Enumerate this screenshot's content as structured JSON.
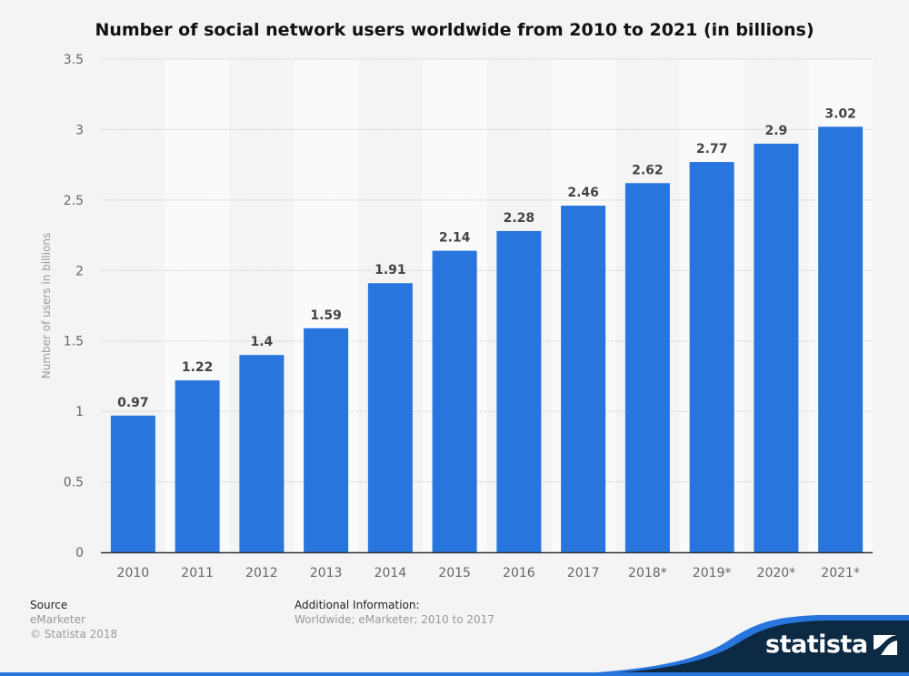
{
  "chart_data": {
    "type": "bar",
    "title": "Number of social network users worldwide from 2010 to 2021 (in billions)",
    "xlabel": "",
    "ylabel": "Number of users in billions",
    "categories": [
      "2010",
      "2011",
      "2012",
      "2013",
      "2014",
      "2015",
      "2016",
      "2017",
      "2018*",
      "2019*",
      "2020*",
      "2021*"
    ],
    "values": [
      0.97,
      1.22,
      1.4,
      1.59,
      1.91,
      2.14,
      2.28,
      2.46,
      2.62,
      2.77,
      2.9,
      3.02
    ],
    "ylim": [
      0,
      3.5
    ],
    "yticks": [
      0,
      0.5,
      1,
      1.5,
      2,
      2.5,
      3,
      3.5
    ],
    "grid": true,
    "bar_color": "#2775dd"
  },
  "footer": {
    "source_label": "Source",
    "source": "eMarketer",
    "copyright": "© Statista 2018",
    "info_label": "Additional Information:",
    "info": "Worldwide; eMarketer; 2010 to 2017",
    "logo": "statista"
  }
}
